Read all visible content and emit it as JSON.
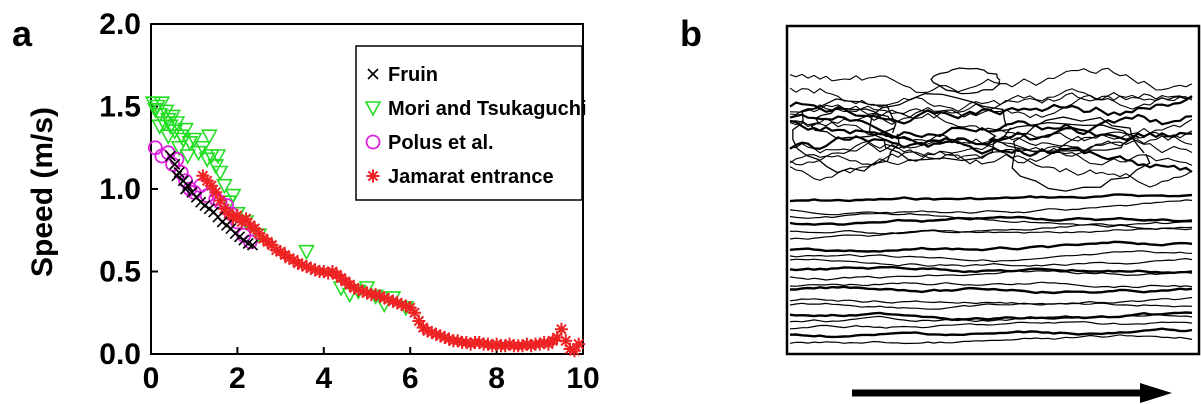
{
  "panel_labels": {
    "a": "a",
    "b": "b"
  },
  "chart_data": {
    "type": "scatter",
    "title": "",
    "xlabel": "",
    "ylabel": "Speed (m/s)",
    "xlim": [
      0,
      10
    ],
    "ylim": [
      0,
      2
    ],
    "xticks": [
      "0",
      "2",
      "4",
      "6",
      "8",
      "10"
    ],
    "yticks": [
      "0.0",
      "0.5",
      "1.0",
      "1.5",
      "2.0"
    ],
    "grid": false,
    "legend_position": "top-right",
    "series": [
      {
        "name": "Fruin",
        "marker": "x",
        "color": "#000000",
        "points": [
          [
            0.55,
            1.15
          ],
          [
            0.65,
            1.1
          ],
          [
            0.75,
            1.05
          ],
          [
            0.85,
            1.02
          ],
          [
            0.95,
            0.98
          ],
          [
            1.05,
            0.95
          ],
          [
            1.15,
            0.92
          ],
          [
            1.25,
            0.9
          ],
          [
            1.35,
            0.88
          ],
          [
            1.45,
            0.86
          ],
          [
            1.55,
            0.83
          ],
          [
            1.65,
            0.8
          ],
          [
            1.75,
            0.78
          ],
          [
            1.85,
            0.76
          ],
          [
            1.95,
            0.73
          ],
          [
            2.05,
            0.71
          ],
          [
            2.15,
            0.69
          ],
          [
            2.25,
            0.67
          ],
          [
            2.35,
            0.66
          ],
          [
            0.45,
            1.2
          ],
          [
            0.6,
            1.08
          ],
          [
            0.8,
            1.0
          ]
        ]
      },
      {
        "name": "Mori and Tsukaguchi",
        "marker": "triangle-down",
        "color": "#22dd22",
        "points": [
          [
            0.05,
            1.52
          ],
          [
            0.1,
            1.48
          ],
          [
            0.15,
            1.5
          ],
          [
            0.2,
            1.45
          ],
          [
            0.25,
            1.52
          ],
          [
            0.3,
            1.4
          ],
          [
            0.35,
            1.47
          ],
          [
            0.4,
            1.42
          ],
          [
            0.45,
            1.38
          ],
          [
            0.5,
            1.44
          ],
          [
            0.55,
            1.35
          ],
          [
            0.6,
            1.4
          ],
          [
            0.7,
            1.32
          ],
          [
            0.75,
            1.3
          ],
          [
            0.8,
            1.36
          ],
          [
            0.9,
            1.28
          ],
          [
            1.0,
            1.3
          ],
          [
            1.1,
            1.22
          ],
          [
            1.2,
            1.25
          ],
          [
            1.3,
            1.18
          ],
          [
            1.4,
            1.2
          ],
          [
            1.5,
            1.14
          ],
          [
            1.6,
            1.1
          ],
          [
            1.7,
            1.02
          ],
          [
            1.8,
            0.92
          ],
          [
            1.9,
            0.96
          ],
          [
            2.0,
            0.85
          ],
          [
            2.2,
            0.8
          ],
          [
            2.5,
            0.72
          ],
          [
            3.6,
            0.62
          ],
          [
            4.4,
            0.4
          ],
          [
            4.6,
            0.36
          ],
          [
            4.8,
            0.38
          ],
          [
            5.0,
            0.4
          ],
          [
            5.2,
            0.35
          ],
          [
            5.4,
            0.3
          ],
          [
            5.6,
            0.34
          ],
          [
            5.9,
            0.28
          ],
          [
            1.35,
            1.32
          ],
          [
            1.55,
            1.2
          ],
          [
            0.2,
            1.38
          ],
          [
            0.4,
            1.32
          ],
          [
            0.65,
            1.25
          ],
          [
            0.85,
            1.2
          ]
        ]
      },
      {
        "name": "Polus et al.",
        "marker": "circle",
        "color": "#dd22dd",
        "points": [
          [
            0.1,
            1.25
          ],
          [
            0.25,
            1.2
          ],
          [
            0.4,
            1.22
          ],
          [
            0.5,
            1.15
          ],
          [
            0.6,
            1.18
          ],
          [
            0.7,
            1.1
          ],
          [
            0.8,
            1.05
          ],
          [
            0.9,
            1.0
          ],
          [
            1.0,
            0.98
          ],
          [
            1.15,
            1.02
          ],
          [
            1.3,
            0.96
          ],
          [
            1.5,
            0.94
          ],
          [
            1.6,
            0.92
          ],
          [
            1.75,
            0.9
          ],
          [
            1.85,
            0.85
          ],
          [
            2.0,
            0.8
          ],
          [
            2.15,
            0.72
          ],
          [
            2.3,
            0.68
          ]
        ]
      },
      {
        "name": "Jamarat entrance",
        "marker": "asterisk",
        "color": "#ee2222",
        "points": [
          [
            1.2,
            1.08
          ],
          [
            1.3,
            1.05
          ],
          [
            1.4,
            1.02
          ],
          [
            1.5,
            0.98
          ],
          [
            1.6,
            0.93
          ],
          [
            1.7,
            0.88
          ],
          [
            1.8,
            0.85
          ],
          [
            1.9,
            0.82
          ],
          [
            2.0,
            0.84
          ],
          [
            2.1,
            0.8
          ],
          [
            2.2,
            0.82
          ],
          [
            2.3,
            0.78
          ],
          [
            2.4,
            0.76
          ],
          [
            2.5,
            0.73
          ],
          [
            2.6,
            0.7
          ],
          [
            2.7,
            0.68
          ],
          [
            2.8,
            0.66
          ],
          [
            2.9,
            0.63
          ],
          [
            3.0,
            0.62
          ],
          [
            3.1,
            0.6
          ],
          [
            3.2,
            0.58
          ],
          [
            3.3,
            0.57
          ],
          [
            3.4,
            0.55
          ],
          [
            3.5,
            0.54
          ],
          [
            3.6,
            0.53
          ],
          [
            3.7,
            0.52
          ],
          [
            3.8,
            0.51
          ],
          [
            3.9,
            0.5
          ],
          [
            4.0,
            0.5
          ],
          [
            4.1,
            0.49
          ],
          [
            4.2,
            0.5
          ],
          [
            4.3,
            0.48
          ],
          [
            4.4,
            0.46
          ],
          [
            4.5,
            0.44
          ],
          [
            4.6,
            0.42
          ],
          [
            4.7,
            0.4
          ],
          [
            4.8,
            0.39
          ],
          [
            4.9,
            0.38
          ],
          [
            5.0,
            0.37
          ],
          [
            5.1,
            0.36
          ],
          [
            5.2,
            0.36
          ],
          [
            5.3,
            0.35
          ],
          [
            5.4,
            0.34
          ],
          [
            5.5,
            0.33
          ],
          [
            5.6,
            0.32
          ],
          [
            5.7,
            0.31
          ],
          [
            5.8,
            0.3
          ],
          [
            5.9,
            0.29
          ],
          [
            6.0,
            0.28
          ],
          [
            6.1,
            0.25
          ],
          [
            6.2,
            0.2
          ],
          [
            6.3,
            0.16
          ],
          [
            6.4,
            0.14
          ],
          [
            6.5,
            0.13
          ],
          [
            6.6,
            0.12
          ],
          [
            6.7,
            0.11
          ],
          [
            6.8,
            0.1
          ],
          [
            6.9,
            0.09
          ],
          [
            7.0,
            0.08
          ],
          [
            7.1,
            0.08
          ],
          [
            7.2,
            0.07
          ],
          [
            7.3,
            0.07
          ],
          [
            7.4,
            0.06
          ],
          [
            7.5,
            0.07
          ],
          [
            7.6,
            0.07
          ],
          [
            7.7,
            0.06
          ],
          [
            7.8,
            0.06
          ],
          [
            7.9,
            0.05
          ],
          [
            8.0,
            0.06
          ],
          [
            8.1,
            0.05
          ],
          [
            8.2,
            0.05
          ],
          [
            8.3,
            0.06
          ],
          [
            8.4,
            0.05
          ],
          [
            8.5,
            0.05
          ],
          [
            8.6,
            0.05
          ],
          [
            8.7,
            0.06
          ],
          [
            8.8,
            0.05
          ],
          [
            8.9,
            0.06
          ],
          [
            9.0,
            0.06
          ],
          [
            9.1,
            0.07
          ],
          [
            9.2,
            0.06
          ],
          [
            9.3,
            0.08
          ],
          [
            9.4,
            0.1
          ],
          [
            9.5,
            0.15
          ],
          [
            9.6,
            0.08
          ],
          [
            9.7,
            0.03
          ],
          [
            9.8,
            0.02
          ],
          [
            9.9,
            0.06
          ]
        ]
      }
    ]
  },
  "panel_b": {
    "description_free": true,
    "arrow_color": "#000000"
  }
}
